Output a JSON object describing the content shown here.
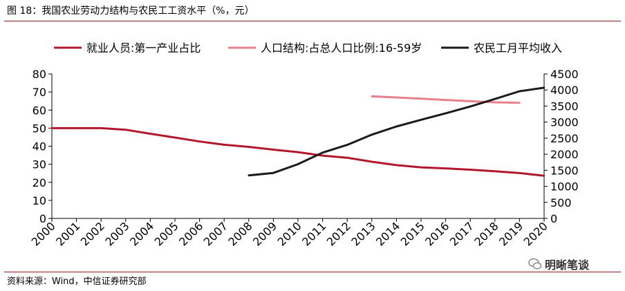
{
  "header": {
    "title": "图 18：我国农业劳动力结构与农民工工资水平（%，元）"
  },
  "footer": {
    "source": "资料来源：Wind，中信证券研究部",
    "watermark": "明晰笔谈"
  },
  "colors": {
    "employment": "#b2182b",
    "population": "#e8808c",
    "income": "#1a1a1a",
    "rule": "#8b1a1a"
  },
  "chart_data": {
    "type": "line",
    "categories": [
      "2000",
      "2001",
      "2002",
      "2003",
      "2004",
      "2005",
      "2006",
      "2007",
      "2008",
      "2009",
      "2010",
      "2011",
      "2012",
      "2013",
      "2014",
      "2015",
      "2016",
      "2017",
      "2018",
      "2019",
      "2020"
    ],
    "left_axis": {
      "ylim": [
        0,
        80
      ],
      "ticks": [
        "0",
        "10",
        "20",
        "30",
        "40",
        "50",
        "60",
        "70",
        "80"
      ]
    },
    "right_axis": {
      "ylim": [
        0,
        4500
      ],
      "ticks": [
        "0",
        "500",
        "1000",
        "1500",
        "2000",
        "2500",
        "3000",
        "3500",
        "4000",
        "4500"
      ]
    },
    "legend_position": "top",
    "series": [
      {
        "name": "就业人员:第一产业占比",
        "axis": "left",
        "color": "#b2182b",
        "values": [
          50.0,
          50.0,
          50.0,
          49.1,
          46.9,
          44.8,
          42.6,
          40.8,
          39.6,
          38.1,
          36.7,
          34.8,
          33.6,
          31.4,
          29.5,
          28.3,
          27.7,
          27.0,
          26.1,
          25.1,
          23.6
        ]
      },
      {
        "name": "人口结构:占总人口比例:16-59岁",
        "axis": "left",
        "color": "#e8808c",
        "values": [
          null,
          null,
          null,
          null,
          null,
          null,
          null,
          null,
          null,
          null,
          null,
          null,
          null,
          67.6,
          67.0,
          66.3,
          65.6,
          64.9,
          64.3,
          64.0,
          null
        ]
      },
      {
        "name": "农民工月平均收入",
        "axis": "right",
        "color": "#1a1a1a",
        "values": [
          null,
          null,
          null,
          null,
          null,
          null,
          null,
          null,
          1340,
          1417,
          1690,
          2049,
          2290,
          2609,
          2864,
          3072,
          3275,
          3485,
          3721,
          3962,
          4072
        ]
      }
    ]
  }
}
